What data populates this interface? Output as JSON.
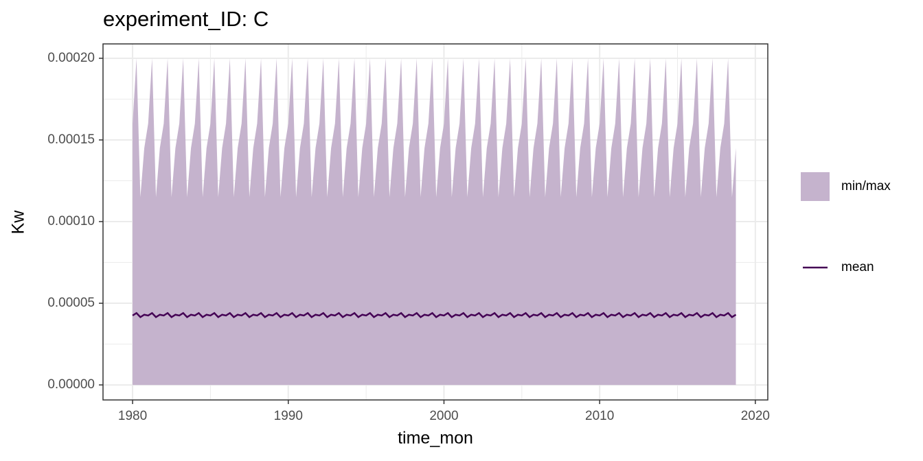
{
  "chart_data": {
    "type": "ribbon_line",
    "title": "experiment_ID: C",
    "xlabel": "time_mon",
    "ylabel": "Kw",
    "xlim": [
      1978.1,
      2020.8
    ],
    "xticks": [
      1980,
      1990,
      2000,
      2010,
      2020
    ],
    "ylim": [
      -9.2e-06,
      0.0002088
    ],
    "yticks": [
      {
        "value": 0,
        "label": "0.00000"
      },
      {
        "value": 5e-05,
        "label": "0.00005"
      },
      {
        "value": 0.0001,
        "label": "0.00010"
      },
      {
        "value": 0.00015,
        "label": "0.00015"
      },
      {
        "value": 0.0002,
        "label": "0.00020"
      }
    ],
    "grid": true,
    "legend": "right",
    "x": [
      1980,
      1980.25,
      1980.5,
      1980.75,
      1981,
      1981.25,
      1981.5,
      1981.75,
      1982,
      1982.25,
      1982.5,
      1982.75,
      1983,
      1983.25,
      1983.5,
      1983.75,
      1984,
      1984.25,
      1984.5,
      1984.75,
      1985,
      1985.25,
      1985.5,
      1985.75,
      1986,
      1986.25,
      1986.5,
      1986.75,
      1987,
      1987.25,
      1987.5,
      1987.75,
      1988,
      1988.25,
      1988.5,
      1988.75,
      1989,
      1989.25,
      1989.5,
      1989.75,
      1990,
      1990.25,
      1990.5,
      1990.75,
      1991,
      1991.25,
      1991.5,
      1991.75,
      1992,
      1992.25,
      1992.5,
      1992.75,
      1993,
      1993.25,
      1993.5,
      1993.75,
      1994,
      1994.25,
      1994.5,
      1994.75,
      1995,
      1995.25,
      1995.5,
      1995.75,
      1996,
      1996.25,
      1996.5,
      1996.75,
      1997,
      1997.25,
      1997.5,
      1997.75,
      1998,
      1998.25,
      1998.5,
      1998.75,
      1999,
      1999.25,
      1999.5,
      1999.75,
      2000,
      2000.25,
      2000.5,
      2000.75,
      2001,
      2001.25,
      2001.5,
      2001.75,
      2002,
      2002.25,
      2002.5,
      2002.75,
      2003,
      2003.25,
      2003.5,
      2003.75,
      2004,
      2004.25,
      2004.5,
      2004.75,
      2005,
      2005.25,
      2005.5,
      2005.75,
      2006,
      2006.25,
      2006.5,
      2006.75,
      2007,
      2007.25,
      2007.5,
      2007.75,
      2008,
      2008.25,
      2008.5,
      2008.75,
      2009,
      2009.25,
      2009.5,
      2009.75,
      2010,
      2010.25,
      2010.5,
      2010.75,
      2011,
      2011.25,
      2011.5,
      2011.75,
      2012,
      2012.25,
      2012.5,
      2012.75,
      2013,
      2013.25,
      2013.5,
      2013.75,
      2014,
      2014.25,
      2014.5,
      2014.75,
      2015,
      2015.25,
      2015.5,
      2015.75,
      2016,
      2016.25,
      2016.5,
      2016.75,
      2017,
      2017.25,
      2017.5,
      2017.75,
      2018,
      2018.25,
      2018.5,
      2018.75
    ],
    "series": [
      {
        "name": "min/max",
        "color": "#c5b3cd",
        "min": [
          0,
          0,
          0,
          0,
          0,
          0,
          0,
          0,
          0,
          0,
          0,
          0,
          0,
          0,
          0,
          0,
          0,
          0,
          0,
          0,
          0,
          0,
          0,
          0,
          0,
          0,
          0,
          0,
          0,
          0,
          0,
          0,
          0,
          0,
          0,
          0,
          0,
          0,
          0,
          0,
          0,
          0,
          0,
          0,
          0,
          0,
          0,
          0,
          0,
          0,
          0,
          0,
          0,
          0,
          0,
          0,
          0,
          0,
          0,
          0,
          0,
          0,
          0,
          0,
          0,
          0,
          0,
          0,
          0,
          0,
          0,
          0,
          0,
          0,
          0,
          0,
          0,
          0,
          0,
          0,
          0,
          0,
          0,
          0,
          0,
          0,
          0,
          0,
          0,
          0,
          0,
          0,
          0,
          0,
          0,
          0,
          0,
          0,
          0,
          0,
          0,
          0,
          0,
          0,
          0,
          0,
          0,
          0,
          0,
          0,
          0,
          0,
          0,
          0,
          0,
          0,
          0,
          0,
          0,
          0,
          0,
          0,
          0,
          0,
          0,
          0,
          0,
          0,
          0,
          0,
          0,
          0,
          0,
          0,
          0,
          0,
          0,
          0,
          0,
          0,
          0,
          0,
          0,
          0,
          0,
          0,
          0,
          0,
          0,
          0,
          0,
          0,
          0,
          0,
          0,
          0
        ],
        "max": [
          0.00016,
          0.0002,
          0.000115,
          0.000145,
          0.00016,
          0.0002,
          0.000115,
          0.000145,
          0.00016,
          0.0002,
          0.000115,
          0.000145,
          0.00016,
          0.0002,
          0.000115,
          0.000145,
          0.00016,
          0.0002,
          0.000115,
          0.000145,
          0.00016,
          0.0002,
          0.000115,
          0.000145,
          0.00016,
          0.0002,
          0.000115,
          0.000145,
          0.00016,
          0.0002,
          0.000115,
          0.000145,
          0.00016,
          0.0002,
          0.000115,
          0.000145,
          0.00016,
          0.0002,
          0.000115,
          0.000145,
          0.00016,
          0.0002,
          0.000115,
          0.000145,
          0.00016,
          0.0002,
          0.000115,
          0.000145,
          0.00016,
          0.0002,
          0.000115,
          0.000145,
          0.00016,
          0.0002,
          0.000115,
          0.000145,
          0.00016,
          0.0002,
          0.000115,
          0.000145,
          0.00016,
          0.0002,
          0.000115,
          0.000145,
          0.00016,
          0.0002,
          0.000115,
          0.000145,
          0.00016,
          0.0002,
          0.000115,
          0.000145,
          0.00016,
          0.0002,
          0.000115,
          0.000145,
          0.00016,
          0.0002,
          0.000115,
          0.000145,
          0.00016,
          0.0002,
          0.000115,
          0.000145,
          0.00016,
          0.0002,
          0.000115,
          0.000145,
          0.00016,
          0.0002,
          0.000115,
          0.000145,
          0.00016,
          0.0002,
          0.000115,
          0.000145,
          0.00016,
          0.0002,
          0.000115,
          0.000145,
          0.00016,
          0.0002,
          0.000115,
          0.000145,
          0.00016,
          0.0002,
          0.000115,
          0.000145,
          0.00016,
          0.0002,
          0.000115,
          0.000145,
          0.00016,
          0.0002,
          0.000115,
          0.000145,
          0.00016,
          0.0002,
          0.000115,
          0.000145,
          0.00016,
          0.0002,
          0.000115,
          0.000145,
          0.00016,
          0.0002,
          0.000115,
          0.000145,
          0.00016,
          0.0002,
          0.000115,
          0.000145,
          0.00016,
          0.0002,
          0.000115,
          0.000145,
          0.00016,
          0.0002,
          0.000115,
          0.000145,
          0.00016,
          0.0002,
          0.000115,
          0.000145,
          0.00016,
          0.0002,
          0.000115,
          0.000145,
          0.00016,
          0.0002,
          0.000115,
          0.000145,
          0.00016,
          0.0002,
          0.000115,
          0.000145
        ]
      },
      {
        "name": "mean",
        "color": "#440154",
        "values": [
          4.25e-05,
          4.4e-05,
          4.15e-05,
          4.3e-05,
          4.25e-05,
          4.4e-05,
          4.15e-05,
          4.3e-05,
          4.25e-05,
          4.4e-05,
          4.15e-05,
          4.3e-05,
          4.25e-05,
          4.4e-05,
          4.15e-05,
          4.3e-05,
          4.25e-05,
          4.4e-05,
          4.15e-05,
          4.3e-05,
          4.25e-05,
          4.4e-05,
          4.15e-05,
          4.3e-05,
          4.25e-05,
          4.4e-05,
          4.15e-05,
          4.3e-05,
          4.25e-05,
          4.4e-05,
          4.15e-05,
          4.3e-05,
          4.25e-05,
          4.4e-05,
          4.15e-05,
          4.3e-05,
          4.25e-05,
          4.4e-05,
          4.15e-05,
          4.3e-05,
          4.25e-05,
          4.4e-05,
          4.15e-05,
          4.3e-05,
          4.25e-05,
          4.4e-05,
          4.15e-05,
          4.3e-05,
          4.25e-05,
          4.4e-05,
          4.15e-05,
          4.3e-05,
          4.25e-05,
          4.4e-05,
          4.15e-05,
          4.3e-05,
          4.25e-05,
          4.4e-05,
          4.15e-05,
          4.3e-05,
          4.25e-05,
          4.4e-05,
          4.15e-05,
          4.3e-05,
          4.25e-05,
          4.4e-05,
          4.15e-05,
          4.3e-05,
          4.25e-05,
          4.4e-05,
          4.15e-05,
          4.3e-05,
          4.25e-05,
          4.4e-05,
          4.15e-05,
          4.3e-05,
          4.25e-05,
          4.4e-05,
          4.15e-05,
          4.3e-05,
          4.25e-05,
          4.4e-05,
          4.15e-05,
          4.3e-05,
          4.25e-05,
          4.4e-05,
          4.15e-05,
          4.3e-05,
          4.25e-05,
          4.4e-05,
          4.15e-05,
          4.3e-05,
          4.25e-05,
          4.4e-05,
          4.15e-05,
          4.3e-05,
          4.25e-05,
          4.4e-05,
          4.15e-05,
          4.3e-05,
          4.25e-05,
          4.4e-05,
          4.15e-05,
          4.3e-05,
          4.25e-05,
          4.4e-05,
          4.15e-05,
          4.3e-05,
          4.25e-05,
          4.4e-05,
          4.15e-05,
          4.3e-05,
          4.25e-05,
          4.4e-05,
          4.15e-05,
          4.3e-05,
          4.25e-05,
          4.4e-05,
          4.15e-05,
          4.3e-05,
          4.25e-05,
          4.4e-05,
          4.15e-05,
          4.3e-05,
          4.25e-05,
          4.4e-05,
          4.15e-05,
          4.3e-05,
          4.25e-05,
          4.4e-05,
          4.15e-05,
          4.3e-05,
          4.25e-05,
          4.4e-05,
          4.15e-05,
          4.3e-05,
          4.25e-05,
          4.4e-05,
          4.15e-05,
          4.3e-05,
          4.25e-05,
          4.4e-05,
          4.15e-05,
          4.3e-05,
          4.25e-05,
          4.4e-05,
          4.15e-05,
          4.3e-05,
          4.25e-05,
          4.4e-05,
          4.15e-05,
          4.3e-05,
          4.25e-05,
          4.4e-05,
          4.15e-05,
          4.3e-05
        ]
      }
    ]
  }
}
